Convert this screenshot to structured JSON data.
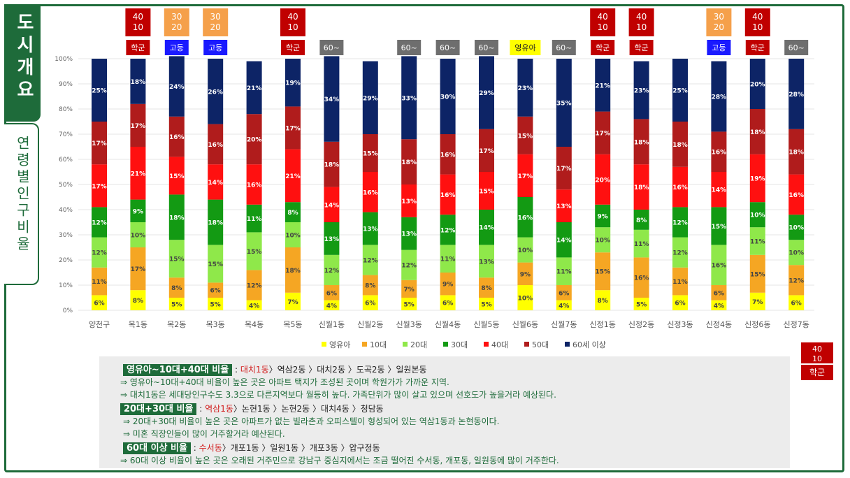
{
  "side": {
    "title": "도시개요",
    "subtitle": "연령별인구비율"
  },
  "chart_data": {
    "type": "bar",
    "stacked": true,
    "categories": [
      "양천구",
      "목1동",
      "목2동",
      "목3동",
      "목4동",
      "목5동",
      "신월1동",
      "신월2동",
      "신월3동",
      "신월4동",
      "신월5동",
      "신월6동",
      "신월7동",
      "신정1동",
      "신정2동",
      "신정3동",
      "신정4동",
      "신정6동",
      "신정7동"
    ],
    "yticks": [
      "0%",
      "10%",
      "20%",
      "30%",
      "40%",
      "50%",
      "60%",
      "70%",
      "80%",
      "90%",
      "100%"
    ],
    "ylim": [
      0,
      100
    ],
    "legend_position": "bottom",
    "series": [
      {
        "name": "영유아",
        "color": "#ffff00",
        "values": [
          6,
          8,
          5,
          5,
          4,
          7,
          4,
          6,
          5,
          6,
          5,
          10,
          4,
          8,
          5,
          6,
          4,
          7,
          6
        ]
      },
      {
        "name": "10대",
        "color": "#f5a623",
        "values": [
          11,
          17,
          8,
          6,
          12,
          18,
          6,
          8,
          7,
          9,
          8,
          9,
          6,
          15,
          16,
          11,
          6,
          15,
          12
        ]
      },
      {
        "name": "20대",
        "color": "#8fe84a",
        "values": [
          12,
          10,
          15,
          15,
          15,
          10,
          12,
          12,
          12,
          11,
          13,
          10,
          11,
          10,
          11,
          12,
          16,
          11,
          10
        ]
      },
      {
        "name": "30대",
        "color": "#139a13",
        "values": [
          12,
          9,
          18,
          18,
          11,
          8,
          13,
          13,
          13,
          12,
          14,
          16,
          14,
          9,
          8,
          12,
          15,
          10,
          10
        ]
      },
      {
        "name": "40대",
        "color": "#ff1010",
        "values": [
          17,
          21,
          15,
          14,
          16,
          21,
          14,
          16,
          13,
          16,
          15,
          17,
          13,
          20,
          18,
          16,
          14,
          19,
          16
        ]
      },
      {
        "name": "50대",
        "color": "#b01c1c",
        "values": [
          17,
          17,
          16,
          16,
          20,
          17,
          18,
          15,
          18,
          16,
          17,
          15,
          17,
          17,
          18,
          18,
          16,
          18,
          18
        ]
      },
      {
        "name": "60세 이상",
        "color": "#0d2466",
        "values": [
          25,
          18,
          24,
          26,
          21,
          19,
          34,
          29,
          33,
          30,
          29,
          23,
          35,
          21,
          23,
          25,
          28,
          20,
          28
        ]
      }
    ],
    "top_badges": [
      {
        "cat": 1,
        "top": "40 10",
        "bottom": "학군"
      },
      {
        "cat": 2,
        "top": "30 20",
        "bottom": "고등"
      },
      {
        "cat": 3,
        "top": "30 20",
        "bottom": "고등"
      },
      {
        "cat": 5,
        "top": "40 10",
        "bottom": "학군"
      },
      {
        "cat": 6,
        "top": "",
        "bottom": "60~"
      },
      {
        "cat": 8,
        "top": "",
        "bottom": "60~"
      },
      {
        "cat": 9,
        "top": "",
        "bottom": "60~"
      },
      {
        "cat": 10,
        "top": "",
        "bottom": "60~"
      },
      {
        "cat": 11,
        "top": "",
        "bottom": "영유아"
      },
      {
        "cat": 12,
        "top": "",
        "bottom": "60~"
      },
      {
        "cat": 13,
        "top": "40 10",
        "bottom": "학군"
      },
      {
        "cat": 14,
        "top": "40 10",
        "bottom": "학군"
      },
      {
        "cat": 16,
        "top": "30 20",
        "bottom": "고등"
      },
      {
        "cat": 17,
        "top": "40 10",
        "bottom": "학군"
      },
      {
        "cat": 18,
        "top": "",
        "bottom": "60~"
      }
    ]
  },
  "side_badge": {
    "top": "40 10",
    "bottom": "학군"
  },
  "notes": {
    "h1": "영유아~10대+40대 비율",
    "h1_red": "대치1동",
    "h1_rest": "〉역삼2동 〉대치2동 〉도곡2동 〉일원본동",
    "l1": "⇒ 영유아~10대+40대 비율이 높은 곳은 아파트 택지가 조성된 곳이며 학원가가 가까운 지역.",
    "l2": "⇒ 대치1동은 세대당인구수도 3.3으로 다른지역보다 월등히 높다. 가족단위가 많이 살고 있으며 선호도가 높을거라 예상된다.",
    "h2": "20대+30대 비율",
    "h2_red": "역삼1동",
    "h2_rest": "〉논현1동 〉논현2동 〉대치4동 〉청담동",
    "l3": "⇒ 20대+30대 비율이 높은 곳은 아파트가 없는 빌라촌과 오피스텔이 형성되어 있는 역삼1동과 논현동이다.",
    "l4": "⇒ 미혼 직장인들이 많이 거주할거라 예산된다.",
    "h3": "60대 이상 비율",
    "h3_red": "수서동",
    "h3_rest": "〉개포1동 〉일원1동 〉개포3동 〉압구정동",
    "l5": "⇒ 60대 이상 비율이 높은 곳은 오래된 거주민으로 강남구 중심지에서는 조금 떨어진 수서동, 개포동, 일원동에 많이 거주한다."
  }
}
